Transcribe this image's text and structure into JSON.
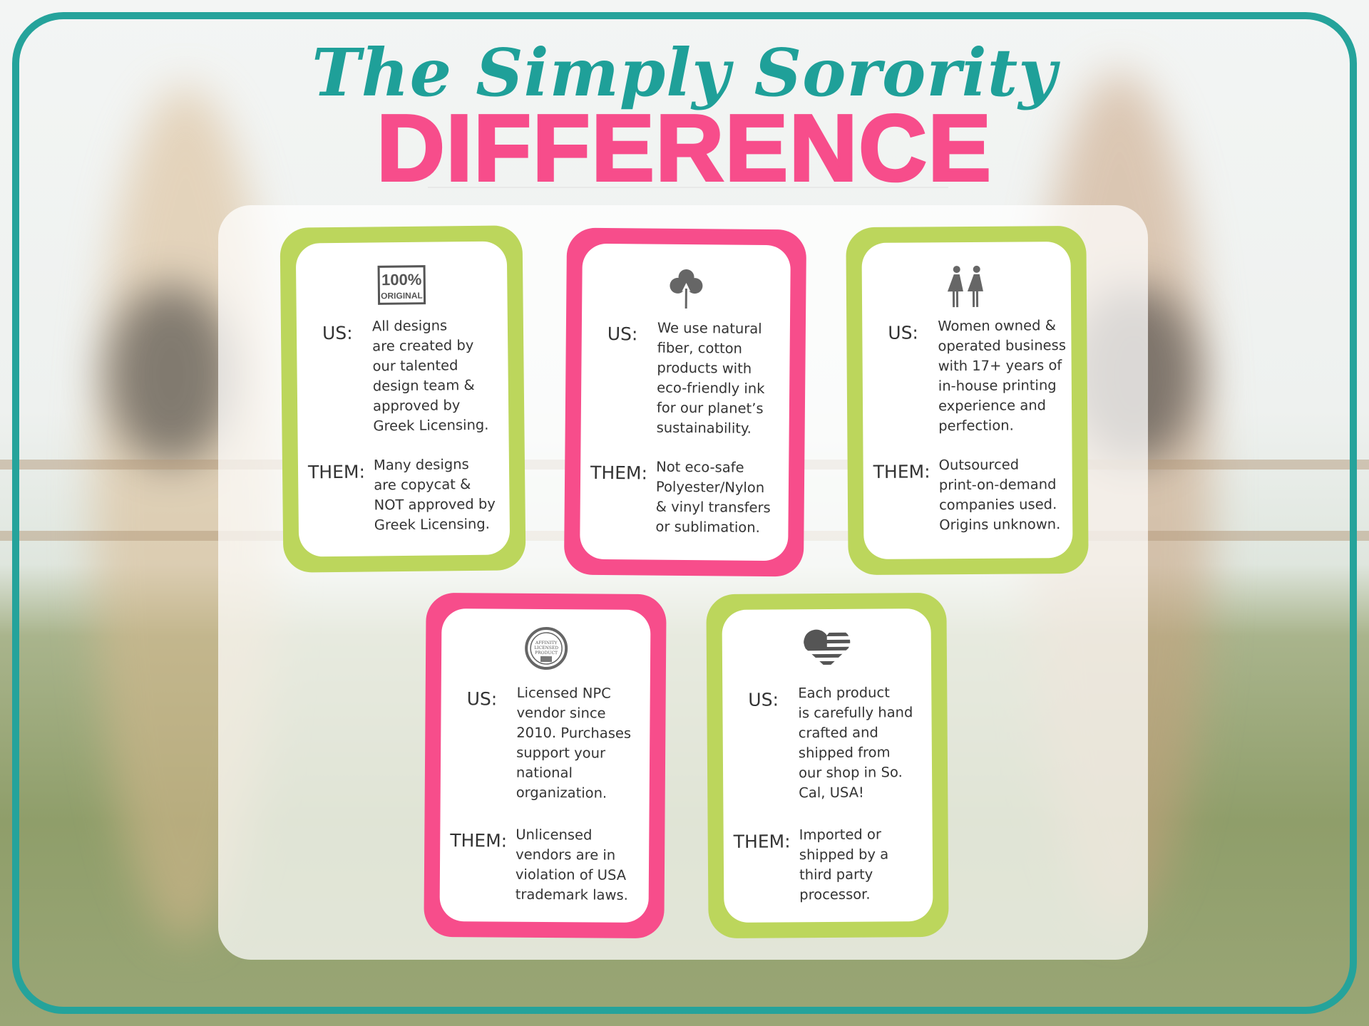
{
  "title": {
    "script_line": "The Simply Sorority",
    "main_line": "DIFFERENCE"
  },
  "colors": {
    "teal": "#25a39b",
    "pink": "#f74d8b",
    "green": "#bcd65c"
  },
  "labels": {
    "us": "US:",
    "them": "THEM:"
  },
  "cards": [
    {
      "icon": "100-percent-original-stamp-icon",
      "border": "green",
      "us": "All designs\nare created by\nour talented\ndesign team &\napproved by\nGreek Licensing.",
      "them": "Many designs\nare copycat &\nNOT approved by\nGreek Licensing."
    },
    {
      "icon": "cotton-plant-icon",
      "border": "pink",
      "us": "We use natural\nfiber, cotton\nproducts with\neco-friendly ink\nfor our planet’s\nsustainability.",
      "them": "Not eco-safe\nPolyester/Nylon\n& vinyl transfers\nor sublimation."
    },
    {
      "icon": "two-women-icon",
      "border": "green",
      "us": "Women owned &\noperated business\nwith 17+ years of\nin-house printing\nexperience and\nperfection.",
      "them": "Outsourced\nprint-on-demand\ncompanies used.\nOrigins unknown."
    },
    {
      "icon": "affinity-licensed-product-seal-icon",
      "border": "pink",
      "us": "Licensed NPC\nvendor since\n2010. Purchases\nsupport your\nnational\norganization.",
      "them": "Unlicensed\nvendors are in\nviolation of USA\ntrademark laws."
    },
    {
      "icon": "american-flag-heart-icon",
      "border": "green",
      "us": "Each product\nis carefully hand\ncrafted and\nshipped from\nour shop in So.\nCal, USA!",
      "them": "Imported or\nshipped by a\nthird party\nprocessor."
    }
  ],
  "icon_text": {
    "stamp_top": "100%",
    "stamp_bottom": "ORIGINAL",
    "seal": "AFFINITY LICENSED PRODUCT"
  }
}
